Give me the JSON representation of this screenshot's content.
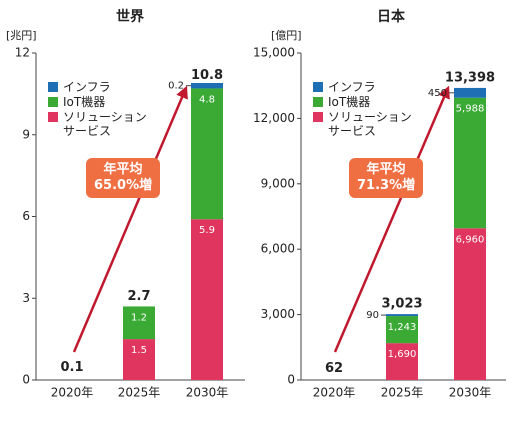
{
  "chart_data": [
    {
      "type": "bar",
      "title": "世界",
      "y_label": "[兆円]",
      "categories": [
        "2020年",
        "2025年",
        "2030年"
      ],
      "ylim": [
        0,
        12
      ],
      "yticks": [
        0,
        3,
        6,
        9,
        12
      ],
      "series": [
        {
          "name": "インフラ",
          "color": "#1f6fb5",
          "values": [
            null,
            null,
            0.2
          ]
        },
        {
          "name": "IoT機器",
          "color": "#3aaa35",
          "values": [
            null,
            1.2,
            4.8
          ]
        },
        {
          "name": "ソリューション\nサービス",
          "color": "#e0355e",
          "values": [
            null,
            1.5,
            5.9
          ]
        }
      ],
      "totals": [
        0.1,
        2.7,
        10.8
      ],
      "annotation": "年平均\n65.0%増"
    },
    {
      "type": "bar",
      "title": "日本",
      "y_label": "[億円]",
      "categories": [
        "2020年",
        "2025年",
        "2030年"
      ],
      "ylim": [
        0,
        15000
      ],
      "yticks": [
        0,
        {
          "value": 3000,
          "label": "3,000"
        },
        {
          "value": 6000,
          "label": "6,000"
        },
        {
          "value": 9000,
          "label": "9,000"
        },
        {
          "value": 12000,
          "label": "12,000"
        },
        {
          "value": 15000,
          "label": "15,000"
        }
      ],
      "series": [
        {
          "name": "インフラ",
          "color": "#1f6fb5",
          "values": [
            null,
            90,
            450
          ]
        },
        {
          "name": "IoT機器",
          "color": "#3aaa35",
          "values": [
            null,
            1243,
            5988
          ],
          "value_labels": [
            null,
            "1,243",
            "5,988"
          ]
        },
        {
          "name": "ソリューション\nサービス",
          "color": "#e0355e",
          "values": [
            null,
            1690,
            6960
          ],
          "value_labels": [
            null,
            "1,690",
            "6,960"
          ]
        }
      ],
      "totals": [
        62,
        3023,
        13398
      ],
      "total_labels": [
        null,
        "3,023",
        "13,398"
      ],
      "annotation": "年平均\n71.3%増"
    }
  ]
}
